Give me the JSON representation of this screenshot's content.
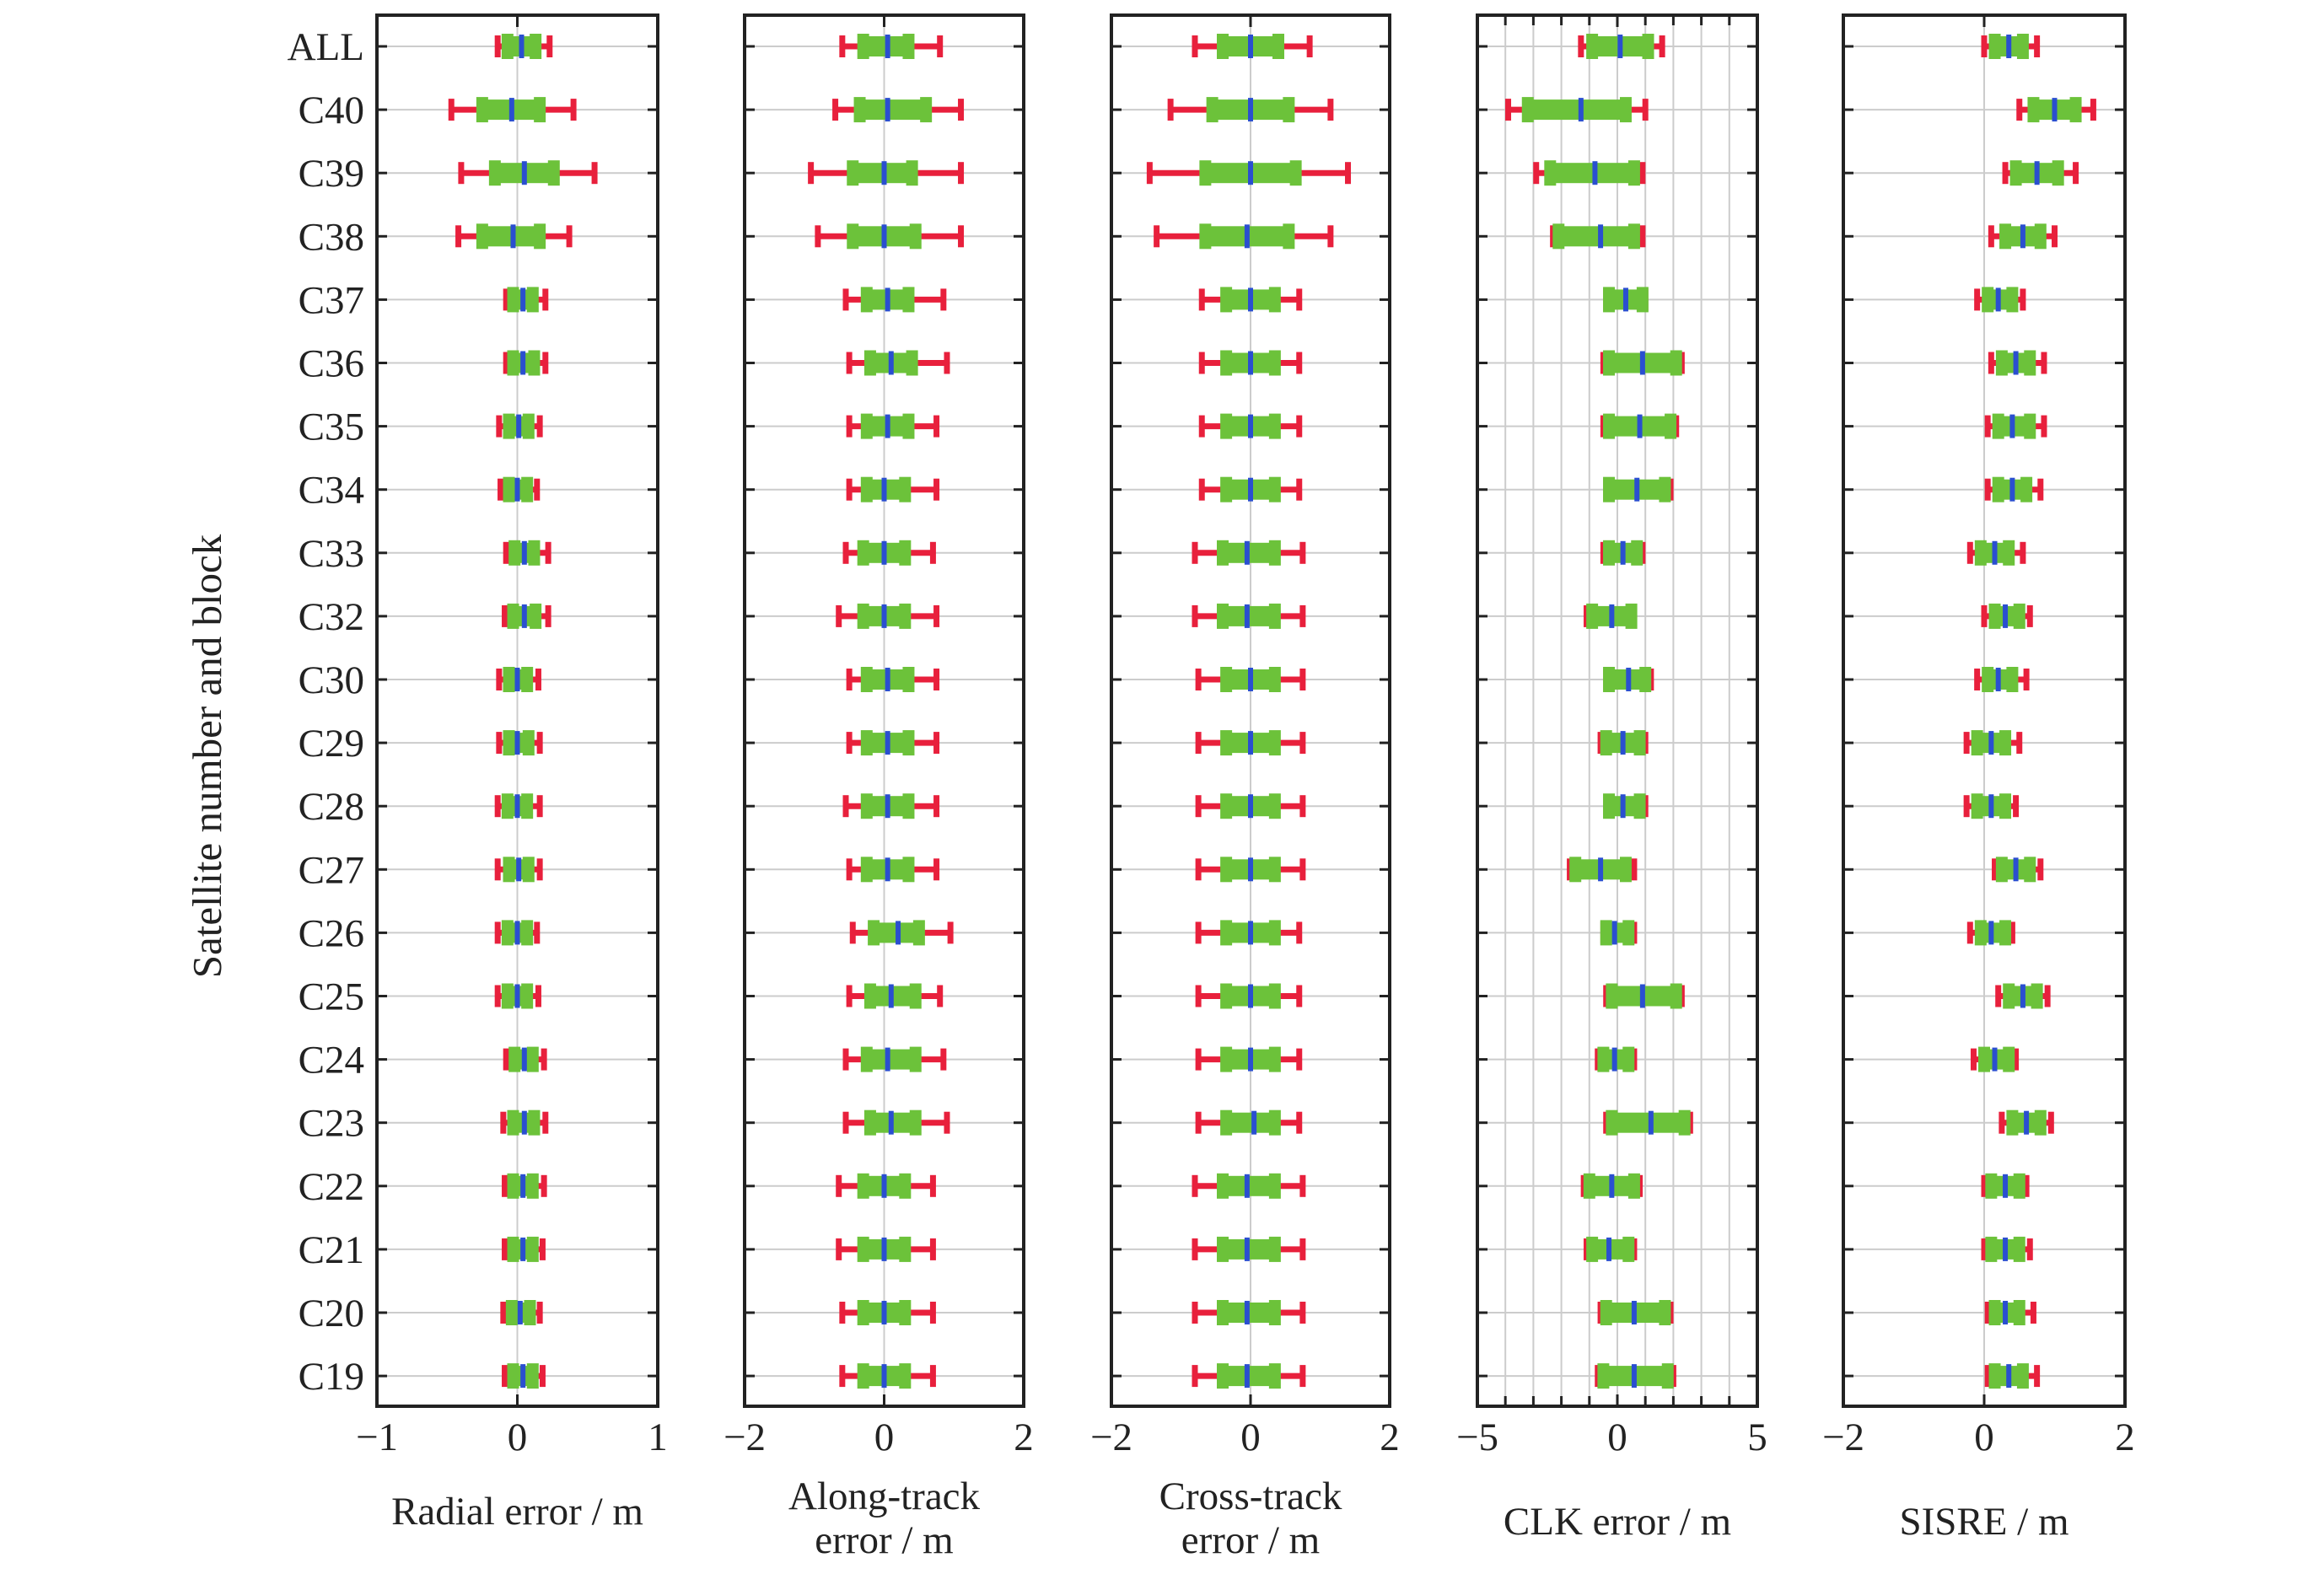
{
  "figure": {
    "ylabel": "Satellite number and block",
    "categories": [
      "ALL",
      "C40",
      "C39",
      "C38",
      "C37",
      "C36",
      "C35",
      "C34",
      "C33",
      "C32",
      "C30",
      "C29",
      "C28",
      "C27",
      "C26",
      "C25",
      "C24",
      "C23",
      "C22",
      "C21",
      "C20",
      "C19"
    ]
  },
  "colors": {
    "whisker": "#e8203c",
    "box": "#6cc23a",
    "median": "#2a4fd0",
    "grid": "#cccccc",
    "frame": "#222222"
  },
  "chart_data": [
    {
      "type": "box",
      "xlabel": "Radial error / m",
      "xlim": [
        -1,
        1
      ],
      "xticks": [
        -1,
        0,
        1
      ],
      "grid": "horizontal",
      "rows": [
        {
          "label": "ALL",
          "min": -0.14,
          "q1": -0.07,
          "median": 0.03,
          "q3": 0.13,
          "max": 0.23
        },
        {
          "label": "C40",
          "min": -0.47,
          "q1": -0.25,
          "median": -0.04,
          "q3": 0.16,
          "max": 0.4
        },
        {
          "label": "C39",
          "min": -0.4,
          "q1": -0.16,
          "median": 0.05,
          "q3": 0.26,
          "max": 0.55
        },
        {
          "label": "C38",
          "min": -0.42,
          "q1": -0.25,
          "median": -0.03,
          "q3": 0.16,
          "max": 0.37
        },
        {
          "label": "C37",
          "min": -0.08,
          "q1": -0.03,
          "median": 0.04,
          "q3": 0.11,
          "max": 0.2
        },
        {
          "label": "C36",
          "min": -0.08,
          "q1": -0.03,
          "median": 0.04,
          "q3": 0.12,
          "max": 0.2
        },
        {
          "label": "C35",
          "min": -0.13,
          "q1": -0.06,
          "median": 0.01,
          "q3": 0.08,
          "max": 0.16
        },
        {
          "label": "C34",
          "min": -0.12,
          "q1": -0.06,
          "median": 0.0,
          "q3": 0.07,
          "max": 0.14
        },
        {
          "label": "C33",
          "min": -0.08,
          "q1": -0.02,
          "median": 0.05,
          "q3": 0.12,
          "max": 0.22
        },
        {
          "label": "C32",
          "min": -0.09,
          "q1": -0.03,
          "median": 0.05,
          "q3": 0.13,
          "max": 0.22
        },
        {
          "label": "C30",
          "min": -0.13,
          "q1": -0.06,
          "median": 0.0,
          "q3": 0.07,
          "max": 0.15
        },
        {
          "label": "C29",
          "min": -0.13,
          "q1": -0.06,
          "median": 0.0,
          "q3": 0.08,
          "max": 0.16
        },
        {
          "label": "C28",
          "min": -0.14,
          "q1": -0.07,
          "median": 0.0,
          "q3": 0.07,
          "max": 0.16
        },
        {
          "label": "C27",
          "min": -0.14,
          "q1": -0.06,
          "median": 0.01,
          "q3": 0.08,
          "max": 0.16
        },
        {
          "label": "C26",
          "min": -0.14,
          "q1": -0.07,
          "median": 0.0,
          "q3": 0.07,
          "max": 0.14
        },
        {
          "label": "C25",
          "min": -0.14,
          "q1": -0.07,
          "median": 0.0,
          "q3": 0.07,
          "max": 0.15
        },
        {
          "label": "C24",
          "min": -0.08,
          "q1": -0.02,
          "median": 0.05,
          "q3": 0.11,
          "max": 0.19
        },
        {
          "label": "C23",
          "min": -0.1,
          "q1": -0.03,
          "median": 0.05,
          "q3": 0.12,
          "max": 0.2
        },
        {
          "label": "C22",
          "min": -0.09,
          "q1": -0.03,
          "median": 0.04,
          "q3": 0.11,
          "max": 0.19
        },
        {
          "label": "C21",
          "min": -0.09,
          "q1": -0.03,
          "median": 0.04,
          "q3": 0.11,
          "max": 0.18
        },
        {
          "label": "C20",
          "min": -0.1,
          "q1": -0.04,
          "median": 0.02,
          "q3": 0.09,
          "max": 0.16
        },
        {
          "label": "C19",
          "min": -0.09,
          "q1": -0.03,
          "median": 0.04,
          "q3": 0.11,
          "max": 0.18
        }
      ]
    },
    {
      "type": "box",
      "xlabel": "Along-track error / m",
      "xlim": [
        -2,
        2
      ],
      "xticks": [
        -2,
        0,
        2
      ],
      "grid": "horizontal",
      "rows": [
        {
          "label": "ALL",
          "min": -0.6,
          "q1": -0.3,
          "median": 0.05,
          "q3": 0.35,
          "max": 0.8
        },
        {
          "label": "C40",
          "min": -0.7,
          "q1": -0.35,
          "median": 0.05,
          "q3": 0.6,
          "max": 1.1
        },
        {
          "label": "C39",
          "min": -1.05,
          "q1": -0.45,
          "median": 0.0,
          "q3": 0.4,
          "max": 1.1
        },
        {
          "label": "C38",
          "min": -0.95,
          "q1": -0.45,
          "median": 0.0,
          "q3": 0.45,
          "max": 1.1
        },
        {
          "label": "C37",
          "min": -0.55,
          "q1": -0.25,
          "median": 0.05,
          "q3": 0.35,
          "max": 0.85
        },
        {
          "label": "C36",
          "min": -0.5,
          "q1": -0.2,
          "median": 0.1,
          "q3": 0.4,
          "max": 0.9
        },
        {
          "label": "C35",
          "min": -0.5,
          "q1": -0.25,
          "median": 0.05,
          "q3": 0.35,
          "max": 0.75
        },
        {
          "label": "C34",
          "min": -0.5,
          "q1": -0.25,
          "median": 0.0,
          "q3": 0.3,
          "max": 0.75
        },
        {
          "label": "C33",
          "min": -0.55,
          "q1": -0.3,
          "median": 0.0,
          "q3": 0.3,
          "max": 0.7
        },
        {
          "label": "C32",
          "min": -0.65,
          "q1": -0.3,
          "median": 0.0,
          "q3": 0.3,
          "max": 0.75
        },
        {
          "label": "C30",
          "min": -0.5,
          "q1": -0.25,
          "median": 0.05,
          "q3": 0.35,
          "max": 0.75
        },
        {
          "label": "C29",
          "min": -0.5,
          "q1": -0.25,
          "median": 0.05,
          "q3": 0.35,
          "max": 0.75
        },
        {
          "label": "C28",
          "min": -0.55,
          "q1": -0.25,
          "median": 0.05,
          "q3": 0.35,
          "max": 0.75
        },
        {
          "label": "C27",
          "min": -0.5,
          "q1": -0.25,
          "median": 0.05,
          "q3": 0.35,
          "max": 0.75
        },
        {
          "label": "C26",
          "min": -0.45,
          "q1": -0.15,
          "median": 0.2,
          "q3": 0.5,
          "max": 0.95
        },
        {
          "label": "C25",
          "min": -0.5,
          "q1": -0.2,
          "median": 0.1,
          "q3": 0.45,
          "max": 0.8
        },
        {
          "label": "C24",
          "min": -0.55,
          "q1": -0.25,
          "median": 0.05,
          "q3": 0.45,
          "max": 0.85
        },
        {
          "label": "C23",
          "min": -0.55,
          "q1": -0.2,
          "median": 0.1,
          "q3": 0.45,
          "max": 0.9
        },
        {
          "label": "C22",
          "min": -0.65,
          "q1": -0.3,
          "median": 0.0,
          "q3": 0.3,
          "max": 0.7
        },
        {
          "label": "C21",
          "min": -0.65,
          "q1": -0.3,
          "median": 0.0,
          "q3": 0.3,
          "max": 0.7
        },
        {
          "label": "C20",
          "min": -0.6,
          "q1": -0.3,
          "median": 0.0,
          "q3": 0.3,
          "max": 0.7
        },
        {
          "label": "C19",
          "min": -0.6,
          "q1": -0.3,
          "median": 0.0,
          "q3": 0.3,
          "max": 0.7
        }
      ]
    },
    {
      "type": "box",
      "xlabel": "Cross-track error / m",
      "xlim": [
        -2,
        2
      ],
      "xticks": [
        -2,
        0,
        2
      ],
      "grid": "horizontal",
      "rows": [
        {
          "label": "ALL",
          "min": -0.8,
          "q1": -0.4,
          "median": 0.0,
          "q3": 0.4,
          "max": 0.85
        },
        {
          "label": "C40",
          "min": -1.15,
          "q1": -0.55,
          "median": 0.0,
          "q3": 0.55,
          "max": 1.15
        },
        {
          "label": "C39",
          "min": -1.45,
          "q1": -0.65,
          "median": 0.0,
          "q3": 0.65,
          "max": 1.4
        },
        {
          "label": "C38",
          "min": -1.35,
          "q1": -0.65,
          "median": -0.05,
          "q3": 0.55,
          "max": 1.15
        },
        {
          "label": "C37",
          "min": -0.7,
          "q1": -0.35,
          "median": 0.0,
          "q3": 0.35,
          "max": 0.7
        },
        {
          "label": "C36",
          "min": -0.7,
          "q1": -0.35,
          "median": 0.0,
          "q3": 0.35,
          "max": 0.7
        },
        {
          "label": "C35",
          "min": -0.7,
          "q1": -0.35,
          "median": 0.0,
          "q3": 0.35,
          "max": 0.7
        },
        {
          "label": "C34",
          "min": -0.7,
          "q1": -0.35,
          "median": 0.0,
          "q3": 0.35,
          "max": 0.7
        },
        {
          "label": "C33",
          "min": -0.8,
          "q1": -0.4,
          "median": -0.05,
          "q3": 0.35,
          "max": 0.75
        },
        {
          "label": "C32",
          "min": -0.8,
          "q1": -0.4,
          "median": -0.05,
          "q3": 0.35,
          "max": 0.75
        },
        {
          "label": "C30",
          "min": -0.75,
          "q1": -0.35,
          "median": 0.0,
          "q3": 0.35,
          "max": 0.75
        },
        {
          "label": "C29",
          "min": -0.75,
          "q1": -0.35,
          "median": 0.0,
          "q3": 0.35,
          "max": 0.75
        },
        {
          "label": "C28",
          "min": -0.75,
          "q1": -0.35,
          "median": 0.0,
          "q3": 0.35,
          "max": 0.75
        },
        {
          "label": "C27",
          "min": -0.75,
          "q1": -0.35,
          "median": 0.0,
          "q3": 0.35,
          "max": 0.75
        },
        {
          "label": "C26",
          "min": -0.75,
          "q1": -0.35,
          "median": 0.0,
          "q3": 0.35,
          "max": 0.7
        },
        {
          "label": "C25",
          "min": -0.75,
          "q1": -0.35,
          "median": 0.0,
          "q3": 0.35,
          "max": 0.7
        },
        {
          "label": "C24",
          "min": -0.75,
          "q1": -0.35,
          "median": 0.0,
          "q3": 0.35,
          "max": 0.7
        },
        {
          "label": "C23",
          "min": -0.75,
          "q1": -0.35,
          "median": 0.05,
          "q3": 0.35,
          "max": 0.7
        },
        {
          "label": "C22",
          "min": -0.8,
          "q1": -0.4,
          "median": -0.05,
          "q3": 0.35,
          "max": 0.75
        },
        {
          "label": "C21",
          "min": -0.8,
          "q1": -0.4,
          "median": -0.05,
          "q3": 0.35,
          "max": 0.75
        },
        {
          "label": "C20",
          "min": -0.8,
          "q1": -0.4,
          "median": -0.05,
          "q3": 0.35,
          "max": 0.75
        },
        {
          "label": "C19",
          "min": -0.8,
          "q1": -0.4,
          "median": -0.05,
          "q3": 0.35,
          "max": 0.75
        }
      ]
    },
    {
      "type": "box",
      "xlabel": "CLK error / m",
      "xlim": [
        -5,
        5
      ],
      "xticks": [
        -5,
        0,
        5
      ],
      "grid": "both",
      "rows": [
        {
          "label": "ALL",
          "min": -1.3,
          "q1": -0.9,
          "median": 0.1,
          "q3": 1.1,
          "max": 1.6
        },
        {
          "label": "C40",
          "min": -3.9,
          "q1": -3.2,
          "median": -1.3,
          "q3": 0.3,
          "max": 1.0
        },
        {
          "label": "C39",
          "min": -2.9,
          "q1": -2.4,
          "median": -0.8,
          "q3": 0.6,
          "max": 0.9
        },
        {
          "label": "C38",
          "min": -2.3,
          "q1": -2.1,
          "median": -0.6,
          "q3": 0.6,
          "max": 0.9
        },
        {
          "label": "C37",
          "min": -0.4,
          "q1": -0.3,
          "median": 0.3,
          "q3": 0.9,
          "max": 1.0
        },
        {
          "label": "C36",
          "min": -0.5,
          "q1": -0.3,
          "median": 0.9,
          "q3": 2.1,
          "max": 2.3
        },
        {
          "label": "C35",
          "min": -0.5,
          "q1": -0.3,
          "median": 0.8,
          "q3": 1.9,
          "max": 2.1
        },
        {
          "label": "C34",
          "min": -0.4,
          "q1": -0.3,
          "median": 0.7,
          "q3": 1.7,
          "max": 1.9
        },
        {
          "label": "C33",
          "min": -0.5,
          "q1": -0.3,
          "median": 0.2,
          "q3": 0.7,
          "max": 0.9
        },
        {
          "label": "C32",
          "min": -1.1,
          "q1": -0.9,
          "median": -0.2,
          "q3": 0.5,
          "max": 0.6
        },
        {
          "label": "C30",
          "min": -0.4,
          "q1": -0.3,
          "median": 0.4,
          "q3": 1.0,
          "max": 1.2
        },
        {
          "label": "C29",
          "min": -0.6,
          "q1": -0.4,
          "median": 0.2,
          "q3": 0.8,
          "max": 1.0
        },
        {
          "label": "C28",
          "min": -0.4,
          "q1": -0.3,
          "median": 0.2,
          "q3": 0.8,
          "max": 1.0
        },
        {
          "label": "C27",
          "min": -1.7,
          "q1": -1.5,
          "median": -0.6,
          "q3": 0.3,
          "max": 0.6
        },
        {
          "label": "C26",
          "min": -0.5,
          "q1": -0.4,
          "median": -0.1,
          "q3": 0.4,
          "max": 0.6
        },
        {
          "label": "C25",
          "min": -0.4,
          "q1": -0.2,
          "median": 0.9,
          "q3": 2.1,
          "max": 2.3
        },
        {
          "label": "C24",
          "min": -0.7,
          "q1": -0.5,
          "median": -0.1,
          "q3": 0.4,
          "max": 0.6
        },
        {
          "label": "C23",
          "min": -0.4,
          "q1": -0.2,
          "median": 1.2,
          "q3": 2.4,
          "max": 2.6
        },
        {
          "label": "C22",
          "min": -1.2,
          "q1": -1.0,
          "median": -0.2,
          "q3": 0.6,
          "max": 0.8
        },
        {
          "label": "C21",
          "min": -1.1,
          "q1": -0.9,
          "median": -0.3,
          "q3": 0.4,
          "max": 0.6
        },
        {
          "label": "C20",
          "min": -0.6,
          "q1": -0.4,
          "median": 0.6,
          "q3": 1.7,
          "max": 1.9
        },
        {
          "label": "C19",
          "min": -0.7,
          "q1": -0.5,
          "median": 0.6,
          "q3": 1.8,
          "max": 2.0
        }
      ]
    },
    {
      "type": "box",
      "xlabel": "SISRE / m",
      "xlim": [
        -2,
        2
      ],
      "xticks": [
        -2,
        0,
        2
      ],
      "grid": "horizontal",
      "rows": [
        {
          "label": "ALL",
          "min": 0.0,
          "q1": 0.15,
          "median": 0.35,
          "q3": 0.55,
          "max": 0.75
        },
        {
          "label": "C40",
          "min": 0.5,
          "q1": 0.7,
          "median": 1.0,
          "q3": 1.3,
          "max": 1.55
        },
        {
          "label": "C39",
          "min": 0.3,
          "q1": 0.45,
          "median": 0.75,
          "q3": 1.05,
          "max": 1.3
        },
        {
          "label": "C38",
          "min": 0.1,
          "q1": 0.3,
          "median": 0.55,
          "q3": 0.8,
          "max": 1.0
        },
        {
          "label": "C37",
          "min": -0.1,
          "q1": 0.05,
          "median": 0.2,
          "q3": 0.4,
          "max": 0.55
        },
        {
          "label": "C36",
          "min": 0.1,
          "q1": 0.25,
          "median": 0.45,
          "q3": 0.65,
          "max": 0.85
        },
        {
          "label": "C35",
          "min": 0.05,
          "q1": 0.2,
          "median": 0.4,
          "q3": 0.65,
          "max": 0.85
        },
        {
          "label": "C34",
          "min": 0.05,
          "q1": 0.2,
          "median": 0.4,
          "q3": 0.6,
          "max": 0.8
        },
        {
          "label": "C33",
          "min": -0.2,
          "q1": -0.05,
          "median": 0.15,
          "q3": 0.35,
          "max": 0.55
        },
        {
          "label": "C32",
          "min": 0.0,
          "q1": 0.15,
          "median": 0.3,
          "q3": 0.5,
          "max": 0.65
        },
        {
          "label": "C30",
          "min": -0.1,
          "q1": 0.05,
          "median": 0.2,
          "q3": 0.4,
          "max": 0.6
        },
        {
          "label": "C29",
          "min": -0.25,
          "q1": -0.1,
          "median": 0.1,
          "q3": 0.3,
          "max": 0.5
        },
        {
          "label": "C28",
          "min": -0.25,
          "q1": -0.1,
          "median": 0.1,
          "q3": 0.3,
          "max": 0.45
        },
        {
          "label": "C27",
          "min": 0.15,
          "q1": 0.25,
          "median": 0.45,
          "q3": 0.65,
          "max": 0.8
        },
        {
          "label": "C26",
          "min": -0.2,
          "q1": -0.05,
          "median": 0.1,
          "q3": 0.3,
          "max": 0.4
        },
        {
          "label": "C25",
          "min": 0.2,
          "q1": 0.35,
          "median": 0.55,
          "q3": 0.75,
          "max": 0.9
        },
        {
          "label": "C24",
          "min": -0.15,
          "q1": 0.0,
          "median": 0.15,
          "q3": 0.35,
          "max": 0.45
        },
        {
          "label": "C23",
          "min": 0.25,
          "q1": 0.4,
          "median": 0.6,
          "q3": 0.8,
          "max": 0.95
        },
        {
          "label": "C22",
          "min": 0.0,
          "q1": 0.1,
          "median": 0.3,
          "q3": 0.5,
          "max": 0.6
        },
        {
          "label": "C21",
          "min": 0.0,
          "q1": 0.1,
          "median": 0.3,
          "q3": 0.5,
          "max": 0.65
        },
        {
          "label": "C20",
          "min": 0.05,
          "q1": 0.15,
          "median": 0.3,
          "q3": 0.5,
          "max": 0.7
        },
        {
          "label": "C19",
          "min": 0.05,
          "q1": 0.15,
          "median": 0.35,
          "q3": 0.55,
          "max": 0.75
        }
      ]
    }
  ]
}
